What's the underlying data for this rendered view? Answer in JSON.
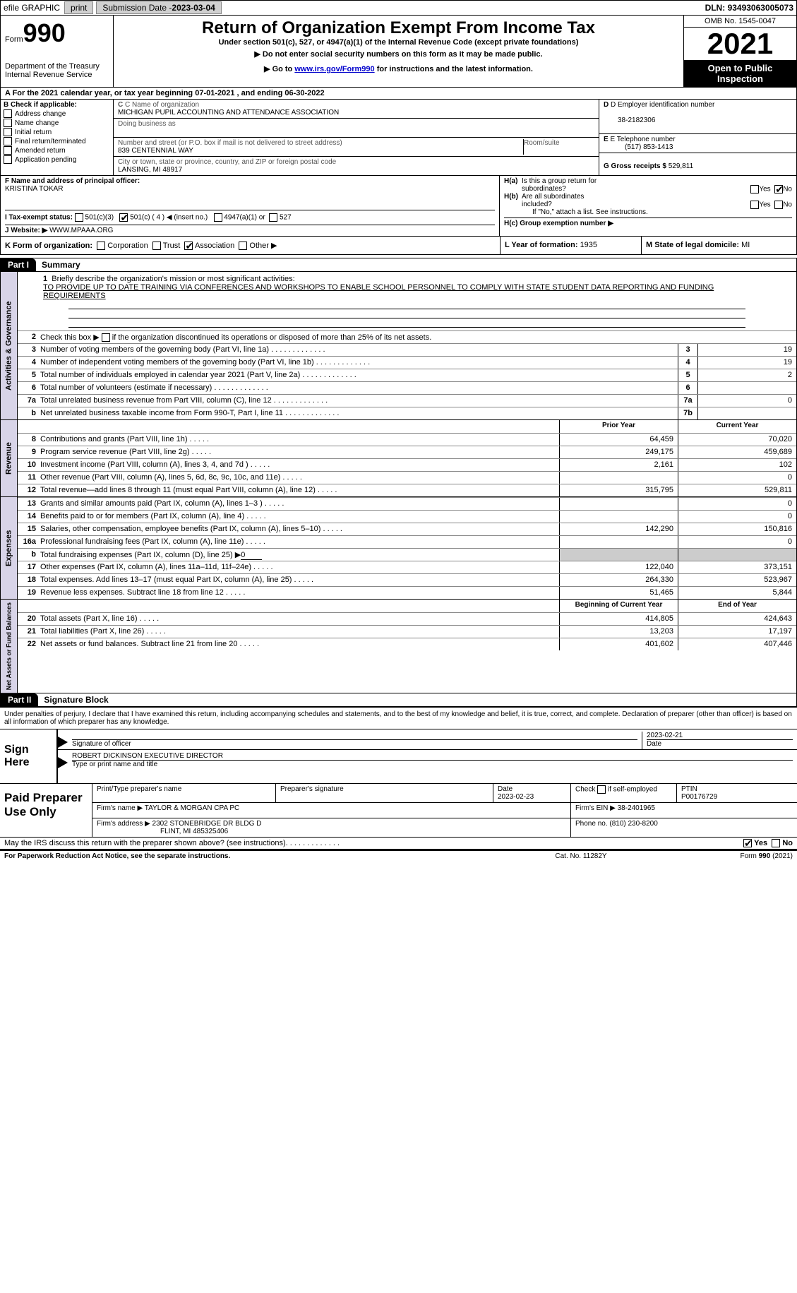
{
  "topbar": {
    "efile_label": "efile GRAPHIC",
    "print_btn": "print",
    "sub_date_label": "Submission Date - ",
    "sub_date": "2023-03-04",
    "dln_label": "DLN: ",
    "dln": "93493063005073"
  },
  "header": {
    "form_label": "Form",
    "form_number": "990",
    "dept": "Department of the Treasury",
    "irs": "Internal Revenue Service",
    "title": "Return of Organization Exempt From Income Tax",
    "subtitle": "Under section 501(c), 527, or 4947(a)(1) of the Internal Revenue Code (except private foundations)",
    "warn1": "Do not enter social security numbers on this form as it may be made public.",
    "warn2_a": "Go to ",
    "warn2_link": "www.irs.gov/Form990",
    "warn2_b": " for instructions and the latest information.",
    "omb": "OMB No. 1545-0047",
    "year": "2021",
    "inspection": "Open to Public Inspection"
  },
  "period": {
    "text_a": "A For the 2021 calendar year, or tax year beginning ",
    "begin": "07-01-2021",
    "text_b": "  , and ending ",
    "end": "06-30-2022"
  },
  "section_b": {
    "label": "B Check if applicable:",
    "items": [
      "Address change",
      "Name change",
      "Initial return",
      "Final return/terminated",
      "Amended return",
      "Application pending"
    ]
  },
  "section_c": {
    "name_label": "C Name of organization",
    "name": "MICHIGAN PUPIL ACCOUNTING AND ATTENDANCE ASSOCIATION",
    "dba_label": "Doing business as",
    "street_label": "Number and street (or P.O. box if mail is not delivered to street address)",
    "street": "839 CENTENNIAL WAY",
    "room_label": "Room/suite",
    "city_label": "City or town, state or province, country, and ZIP or foreign postal code",
    "city": "LANSING, MI  48917"
  },
  "section_d": {
    "label": "D Employer identification number",
    "ein": "38-2182306",
    "e_label": "E Telephone number",
    "phone": "(517) 853-1413",
    "g_label": "G Gross receipts $ ",
    "gross": "529,811"
  },
  "section_f": {
    "label": "F  Name and address of principal officer:",
    "name": "KRISTINA TOKAR"
  },
  "section_h": {
    "ha_label": "H(a)  Is this a group return for subordinates?",
    "hb_label": "H(b)  Are all subordinates included?",
    "hb_note": "If \"No,\" attach a list. See instructions.",
    "hc_label": "H(c)  Group exemption number ▶"
  },
  "section_i": {
    "label": "I    Tax-exempt status:",
    "opt1": "501(c)(3)",
    "opt2": "501(c) ( 4 ) ◀ (insert no.)",
    "opt3": "4947(a)(1) or",
    "opt4": "527"
  },
  "section_j": {
    "label": "J    Website: ▶ ",
    "value": "WWW.MPAAA.ORG"
  },
  "section_k": {
    "label": "K Form of organization:",
    "opts": [
      "Corporation",
      "Trust",
      "Association",
      "Other ▶"
    ],
    "l_label": "L Year of formation: ",
    "l_val": "1935",
    "m_label": "M State of legal domicile: ",
    "m_val": "MI"
  },
  "part1": {
    "header": "Part I",
    "title": "Summary",
    "tabs": [
      "Activities & Governance",
      "Revenue",
      "Expenses",
      "Net Assets or Fund Balances"
    ],
    "line1_label": "Briefly describe the organization's mission or most significant activities:",
    "line1_text": "TO PROVIDE UP TO DATE TRAINING VIA CONFERENCES AND WORKSHOPS TO ENABLE SCHOOL PERSONNEL TO COMPLY WITH STATE STUDENT DATA REPORTING AND FUNDING REQUIREMENTS",
    "line2": "Check this box ▶        if the organization discontinued its operations or disposed of more than 25% of its net assets.",
    "col_prior": "Prior Year",
    "col_current": "Current Year",
    "col_begin": "Beginning of Current Year",
    "col_end": "End of Year",
    "lines_gov": [
      {
        "n": "3",
        "d": "Number of voting members of the governing body (Part VI, line 1a)",
        "box": "3",
        "v": "19"
      },
      {
        "n": "4",
        "d": "Number of independent voting members of the governing body (Part VI, line 1b)",
        "box": "4",
        "v": "19"
      },
      {
        "n": "5",
        "d": "Total number of individuals employed in calendar year 2021 (Part V, line 2a)",
        "box": "5",
        "v": "2"
      },
      {
        "n": "6",
        "d": "Total number of volunteers (estimate if necessary)",
        "box": "6",
        "v": ""
      },
      {
        "n": "7a",
        "d": "Total unrelated business revenue from Part VIII, column (C), line 12",
        "box": "7a",
        "v": "0"
      },
      {
        "n": "b",
        "d": "Net unrelated business taxable income from Form 990-T, Part I, line 11",
        "box": "7b",
        "v": ""
      }
    ],
    "lines_rev": [
      {
        "n": "8",
        "d": "Contributions and grants (Part VIII, line 1h)",
        "p": "64,459",
        "c": "70,020"
      },
      {
        "n": "9",
        "d": "Program service revenue (Part VIII, line 2g)",
        "p": "249,175",
        "c": "459,689"
      },
      {
        "n": "10",
        "d": "Investment income (Part VIII, column (A), lines 3, 4, and 7d )",
        "p": "2,161",
        "c": "102"
      },
      {
        "n": "11",
        "d": "Other revenue (Part VIII, column (A), lines 5, 6d, 8c, 9c, 10c, and 11e)",
        "p": "",
        "c": "0"
      },
      {
        "n": "12",
        "d": "Total revenue—add lines 8 through 11 (must equal Part VIII, column (A), line 12)",
        "p": "315,795",
        "c": "529,811"
      }
    ],
    "lines_exp": [
      {
        "n": "13",
        "d": "Grants and similar amounts paid (Part IX, column (A), lines 1–3 )",
        "p": "",
        "c": "0"
      },
      {
        "n": "14",
        "d": "Benefits paid to or for members (Part IX, column (A), line 4)",
        "p": "",
        "c": "0"
      },
      {
        "n": "15",
        "d": "Salaries, other compensation, employee benefits (Part IX, column (A), lines 5–10)",
        "p": "142,290",
        "c": "150,816"
      },
      {
        "n": "16a",
        "d": "Professional fundraising fees (Part IX, column (A), line 11e)",
        "p": "",
        "c": "0"
      },
      {
        "n": "b",
        "d": "Total fundraising expenses (Part IX, column (D), line 25) ▶",
        "p": "shade",
        "c": "shade",
        "special": "0"
      },
      {
        "n": "17",
        "d": "Other expenses (Part IX, column (A), lines 11a–11d, 11f–24e)",
        "p": "122,040",
        "c": "373,151"
      },
      {
        "n": "18",
        "d": "Total expenses. Add lines 13–17 (must equal Part IX, column (A), line 25)",
        "p": "264,330",
        "c": "523,967"
      },
      {
        "n": "19",
        "d": "Revenue less expenses. Subtract line 18 from line 12",
        "p": "51,465",
        "c": "5,844"
      }
    ],
    "lines_net": [
      {
        "n": "20",
        "d": "Total assets (Part X, line 16)",
        "p": "414,805",
        "c": "424,643"
      },
      {
        "n": "21",
        "d": "Total liabilities (Part X, line 26)",
        "p": "13,203",
        "c": "17,197"
      },
      {
        "n": "22",
        "d": "Net assets or fund balances. Subtract line 21 from line 20",
        "p": "401,602",
        "c": "407,446"
      }
    ]
  },
  "part2": {
    "header": "Part II",
    "title": "Signature Block",
    "penalty": "Under penalties of perjury, I declare that I have examined this return, including accompanying schedules and statements, and to the best of my knowledge and belief, it is true, correct, and complete. Declaration of preparer (other than officer) is based on all information of which preparer has any knowledge.",
    "sign_here": "Sign Here",
    "sig_officer": "Signature of officer",
    "sig_date": "2023-02-21",
    "date_label": "Date",
    "officer_name": "ROBERT DICKINSON  EXECUTIVE DIRECTOR",
    "type_name": "Type or print name and title",
    "paid_label": "Paid Preparer Use Only",
    "prep_name_label": "Print/Type preparer's name",
    "prep_sig_label": "Preparer's signature",
    "prep_date_label": "Date",
    "prep_date": "2023-02-23",
    "check_self": "Check         if self-employed",
    "ptin_label": "PTIN",
    "ptin": "P00176729",
    "firm_name_label": "Firm's name    ▶ ",
    "firm_name": "TAYLOR & MORGAN CPA PC",
    "firm_ein_label": "Firm's EIN ▶ ",
    "firm_ein": "38-2401965",
    "firm_addr_label": "Firm's address ▶ ",
    "firm_addr1": "2302 STONEBRIDGE DR BLDG D",
    "firm_addr2": "FLINT, MI  485325406",
    "phone_label": "Phone no. ",
    "phone": "(810) 230-8200",
    "discuss": "May the IRS discuss this return with the preparer shown above? (see instructions)",
    "yes": "Yes",
    "no": "No"
  },
  "footer": {
    "left": "For Paperwork Reduction Act Notice, see the separate instructions.",
    "mid": "Cat. No. 11282Y",
    "right": "Form 990 (2021)"
  }
}
